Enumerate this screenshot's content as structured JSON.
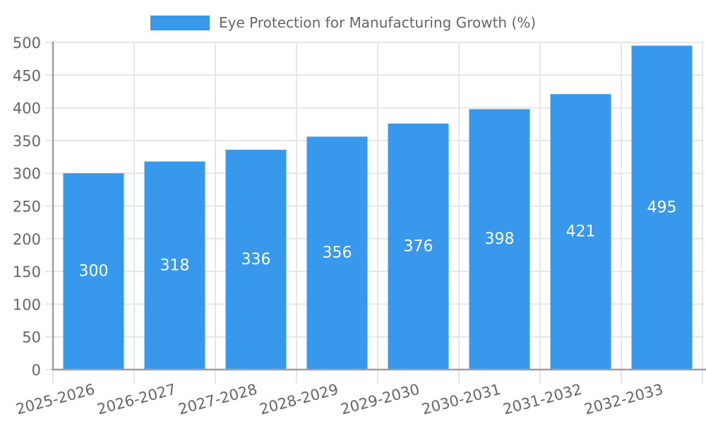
{
  "legend": {
    "position": "top",
    "swatch_color": "#3899EC"
  },
  "chart_data": {
    "type": "bar",
    "title": "Eye Protection for Manufacturing Growth (%)",
    "categories": [
      "2025-2026",
      "2026-2027",
      "2027-2028",
      "2028-2029",
      "2029-2030",
      "2030-2031",
      "2031-2032",
      "2032-2033"
    ],
    "values": [
      300,
      318,
      336,
      356,
      376,
      398,
      421,
      495
    ],
    "xlabel": "",
    "ylabel": "",
    "ylim": [
      0,
      500
    ],
    "ytick_step": 50,
    "yticks": [
      0,
      50,
      100,
      150,
      200,
      250,
      300,
      350,
      400,
      450,
      500
    ],
    "grid": "on",
    "legend_position": "top",
    "bar_color": "#3899EC",
    "bar_label_color": "#FFFFFF",
    "axis_text_color": "#666666",
    "grid_color": "#E6E6E6",
    "axis_line_color": "#9E9EA0",
    "x_label_rotation_deg": -15
  }
}
